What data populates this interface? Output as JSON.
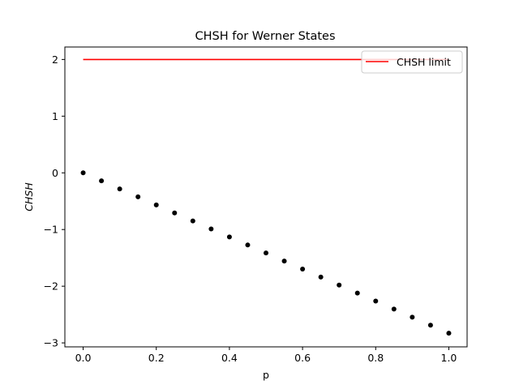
{
  "chart_data": {
    "type": "scatter",
    "title": "CHSH for Werner States",
    "xlabel": "p",
    "ylabel": "CHSH",
    "xlim": [
      -0.05,
      1.05
    ],
    "ylim": [
      -3.07,
      2.22
    ],
    "xticks": [
      0.0,
      0.2,
      0.4,
      0.6,
      0.8,
      1.0
    ],
    "xtick_labels": [
      "0.0",
      "0.2",
      "0.4",
      "0.6",
      "0.8",
      "1.0"
    ],
    "yticks": [
      -3,
      -2,
      -1,
      0,
      1,
      2
    ],
    "ytick_labels": [
      "−3",
      "−2",
      "−1",
      "0",
      "1",
      "2"
    ],
    "grid": false,
    "legend_position": "top-right",
    "series": [
      {
        "kind": "scatter",
        "color": "#000000",
        "x": [
          0.0,
          0.05,
          0.1,
          0.15,
          0.2,
          0.25,
          0.3,
          0.35,
          0.4,
          0.45,
          0.5,
          0.55,
          0.6,
          0.65,
          0.7,
          0.75,
          0.8,
          0.85,
          0.9,
          0.95,
          1.0
        ],
        "y": [
          0.0,
          -0.141,
          -0.283,
          -0.424,
          -0.566,
          -0.707,
          -0.849,
          -0.99,
          -1.131,
          -1.273,
          -1.414,
          -1.556,
          -1.697,
          -1.838,
          -1.98,
          -2.121,
          -2.263,
          -2.404,
          -2.546,
          -2.687,
          -2.828
        ]
      },
      {
        "kind": "line",
        "name": "CHSH limit",
        "color": "#ff0000",
        "x": [
          0.0,
          1.0
        ],
        "y": [
          2.0,
          2.0
        ]
      }
    ]
  }
}
